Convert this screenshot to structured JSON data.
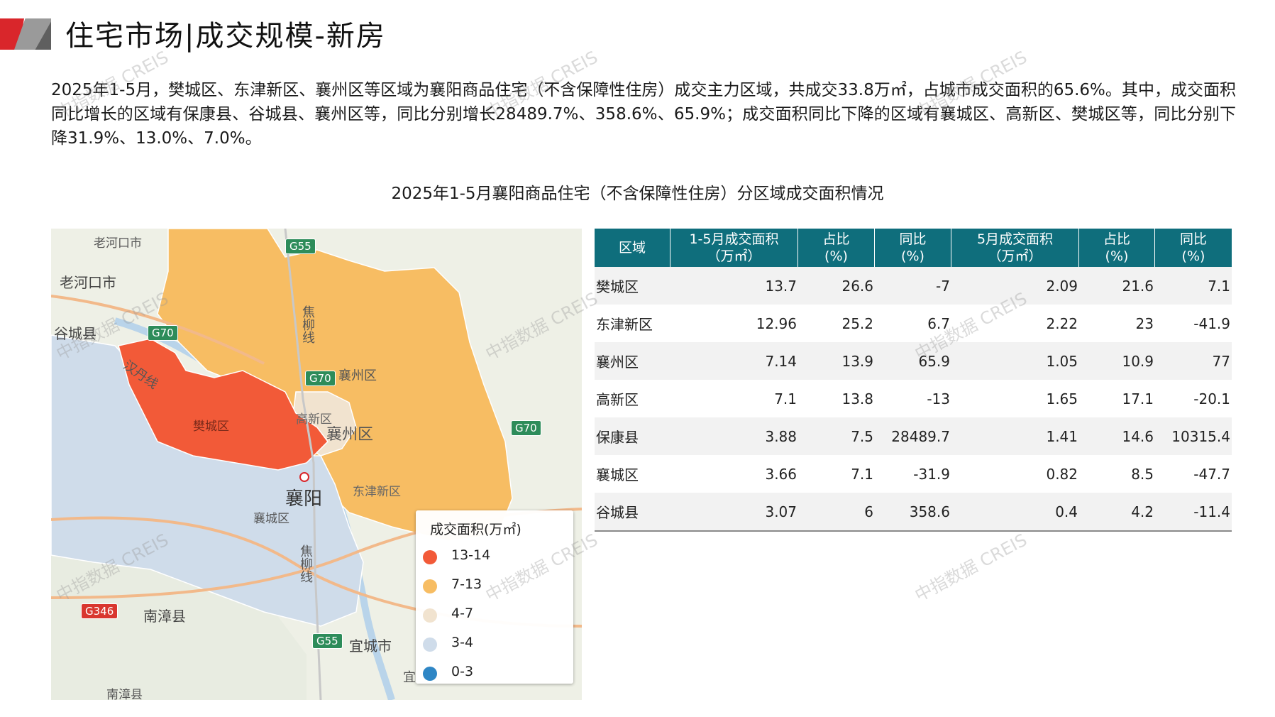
{
  "header": {
    "title": "住宅市场|成交规模-新房"
  },
  "summary": "2025年1-5月，樊城区、东津新区、襄州区等区域为襄阳商品住宅（不含保障性住房）成交主力区域，共成交33.8万㎡，占城市成交面积的65.6%。其中，成交面积同比增长的区域有保康县、谷城县、襄州区等，同比分别增长28489.7%、358.6%、65.9%；成交面积同比下降的区域有襄城区、高新区、樊城区等，同比分别下降31.9%、13.0%、7.0%。",
  "chart_title": "2025年1-5月襄阳商品住宅（不含保障性住房）分区域成交面积情况",
  "map": {
    "labels": {
      "laohekou_shi": "老河口市",
      "laohekou_top": "老河口市",
      "gucheng": "谷城县",
      "jiaoliu_top": "焦柳线",
      "jiaoliu_bottom": "焦柳线",
      "hanjiang": "汉丹线",
      "xiangzhou_small": "襄州区",
      "gaoxin": "高新区",
      "fancheng": "樊城区",
      "xiangzhou": "襄州区",
      "xiangyang": "襄阳",
      "xiangcheng": "襄城区",
      "dongjin": "东津新区",
      "nanzhang": "南漳县",
      "yicheng": "宜城市",
      "nanzhang_bottom": "南漳县",
      "yi": "宜"
    },
    "shields": {
      "g55_top": "G55",
      "g70_left": "G70",
      "g70_mid": "G70",
      "g70_right": "G70",
      "g346": "G346",
      "g55_bottom": "G55"
    },
    "legend": {
      "title": "成交面积(万㎡)",
      "items": [
        {
          "label": "13-14",
          "color": "#f25a38"
        },
        {
          "label": "7-13",
          "color": "#f7bd63"
        },
        {
          "label": "4-7",
          "color": "#f1e3cf"
        },
        {
          "label": "3-4",
          "color": "#cfdcea"
        },
        {
          "label": "0-3",
          "color": "#2e86c5"
        }
      ]
    }
  },
  "table": {
    "headers": [
      "区域",
      "1-5月成交面积\n（万㎡）",
      "占比\n(%)",
      "同比\n(%)",
      "5月成交面积\n（万㎡）",
      "占比\n(%)",
      "同比\n(%)"
    ],
    "rows": [
      [
        "樊城区",
        "13.7",
        "26.6",
        "-7",
        "2.09",
        "21.6",
        "7.1"
      ],
      [
        "东津新区",
        "12.96",
        "25.2",
        "6.7",
        "2.22",
        "23",
        "-41.9"
      ],
      [
        "襄州区",
        "7.14",
        "13.9",
        "65.9",
        "1.05",
        "10.9",
        "77"
      ],
      [
        "高新区",
        "7.1",
        "13.8",
        "-13",
        "1.65",
        "17.1",
        "-20.1"
      ],
      [
        "保康县",
        "3.88",
        "7.5",
        "28489.7",
        "1.41",
        "14.6",
        "10315.4"
      ],
      [
        "襄城区",
        "3.66",
        "7.1",
        "-31.9",
        "0.82",
        "8.5",
        "-47.7"
      ],
      [
        "谷城县",
        "3.07",
        "6",
        "358.6",
        "0.4",
        "4.2",
        "-11.4"
      ]
    ]
  },
  "watermark": "中指数据 CREIS",
  "colors": {
    "accent_red": "#d9262b",
    "table_header": "#0f6e7c"
  }
}
